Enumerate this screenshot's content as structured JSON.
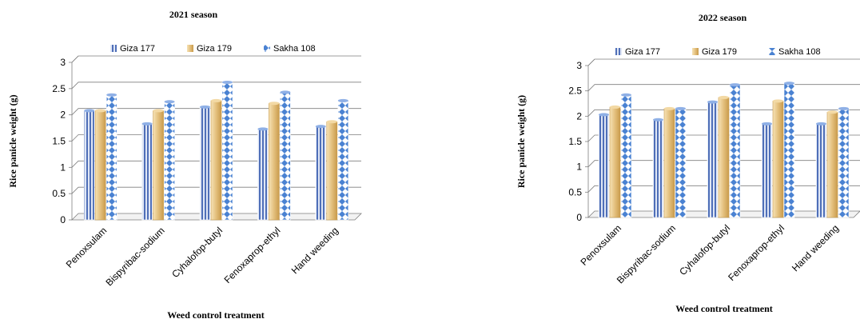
{
  "chart_data": [
    {
      "type": "bar",
      "title": "2021 season",
      "xlabel": "Weed control treatment",
      "ylabel": "Rice panicle weight (g)",
      "ylim": [
        0,
        3
      ],
      "yticks": [
        "0",
        "0.5",
        "1",
        "1.5",
        "2",
        "2.5",
        "3"
      ],
      "categories": [
        "Penoxsulam",
        "Bispyribac-sodium",
        "Cyhalofop-butyl",
        "Fenoxaprop-ethyl",
        "Hand weeding"
      ],
      "series": [
        {
          "name": "Giza 177",
          "values": [
            2.08,
            1.83,
            2.15,
            1.73,
            1.78
          ]
        },
        {
          "name": "Giza 179",
          "values": [
            2.08,
            2.08,
            2.27,
            2.22,
            1.87
          ]
        },
        {
          "name": "Sakha 108",
          "values": [
            2.38,
            2.25,
            2.62,
            2.43,
            2.27
          ]
        }
      ],
      "legend": "top",
      "grid": true
    },
    {
      "type": "bar",
      "title": "2022 season",
      "xlabel": "Weed control treatment",
      "ylabel": "Rice panicle weight (g)",
      "ylim": [
        0,
        3
      ],
      "yticks": [
        "0",
        "0.5",
        "1",
        "1.5",
        "2",
        "2.5",
        "3"
      ],
      "categories": [
        "Penoxsulam",
        "Bispyribac-sodium",
        "Cyhalofop-butyl",
        "Fenoxaprop-ethyl",
        "Hand weeding"
      ],
      "series": [
        {
          "name": "Giza 177",
          "values": [
            2.03,
            1.93,
            2.28,
            1.85,
            1.85
          ]
        },
        {
          "name": "Giza 179",
          "values": [
            2.18,
            2.15,
            2.37,
            2.3,
            2.08
          ]
        },
        {
          "name": "Sakha 108",
          "values": [
            2.42,
            2.15,
            2.62,
            2.65,
            2.15
          ]
        }
      ],
      "legend": "top",
      "grid": true
    }
  ],
  "colors": {
    "giza177": "#4f6fb8",
    "giza179": "#e3bf7c",
    "sakha108": "#4a82d2",
    "grid": "#7f7f7f",
    "axis": "#7f7f7f"
  }
}
